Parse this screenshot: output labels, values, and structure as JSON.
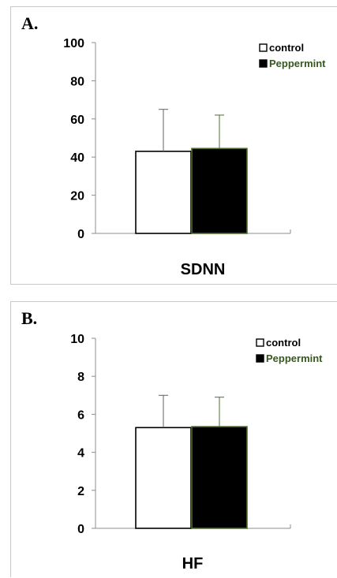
{
  "chart_data": [
    {
      "type": "bar",
      "panel_label": "A.",
      "categories": [
        "SDNN"
      ],
      "xlabel": "SDNN",
      "ylim": [
        0,
        100
      ],
      "yticks": [
        0,
        20,
        40,
        60,
        80,
        100
      ],
      "legend_position": "top-right",
      "error_bars": "upper only",
      "series": [
        {
          "name": "control",
          "values": [
            43
          ],
          "error": [
            22
          ],
          "fill": "#ffffff",
          "stroke": "#000000"
        },
        {
          "name": "Peppermint",
          "values": [
            44.5
          ],
          "error": [
            17.5
          ],
          "fill": "#000000",
          "stroke": "#4e6b2e"
        }
      ]
    },
    {
      "type": "bar",
      "panel_label": "B.",
      "categories": [
        "HF"
      ],
      "xlabel": "HF",
      "ylim": [
        0,
        10
      ],
      "yticks": [
        0,
        2,
        4,
        6,
        8,
        10
      ],
      "legend_position": "top-right",
      "error_bars": "upper only",
      "series": [
        {
          "name": "control",
          "values": [
            5.3
          ],
          "error": [
            1.7
          ],
          "fill": "#ffffff",
          "stroke": "#000000"
        },
        {
          "name": "Peppermint",
          "values": [
            5.35
          ],
          "error": [
            1.55
          ],
          "fill": "#000000",
          "stroke": "#4e6b2e"
        }
      ]
    }
  ],
  "colors": {
    "peppermint_label": "#375623",
    "axis": "#8c8c8c",
    "control_error_bar": "#606060",
    "peppermint_error_bar": "#4e6b2e"
  }
}
